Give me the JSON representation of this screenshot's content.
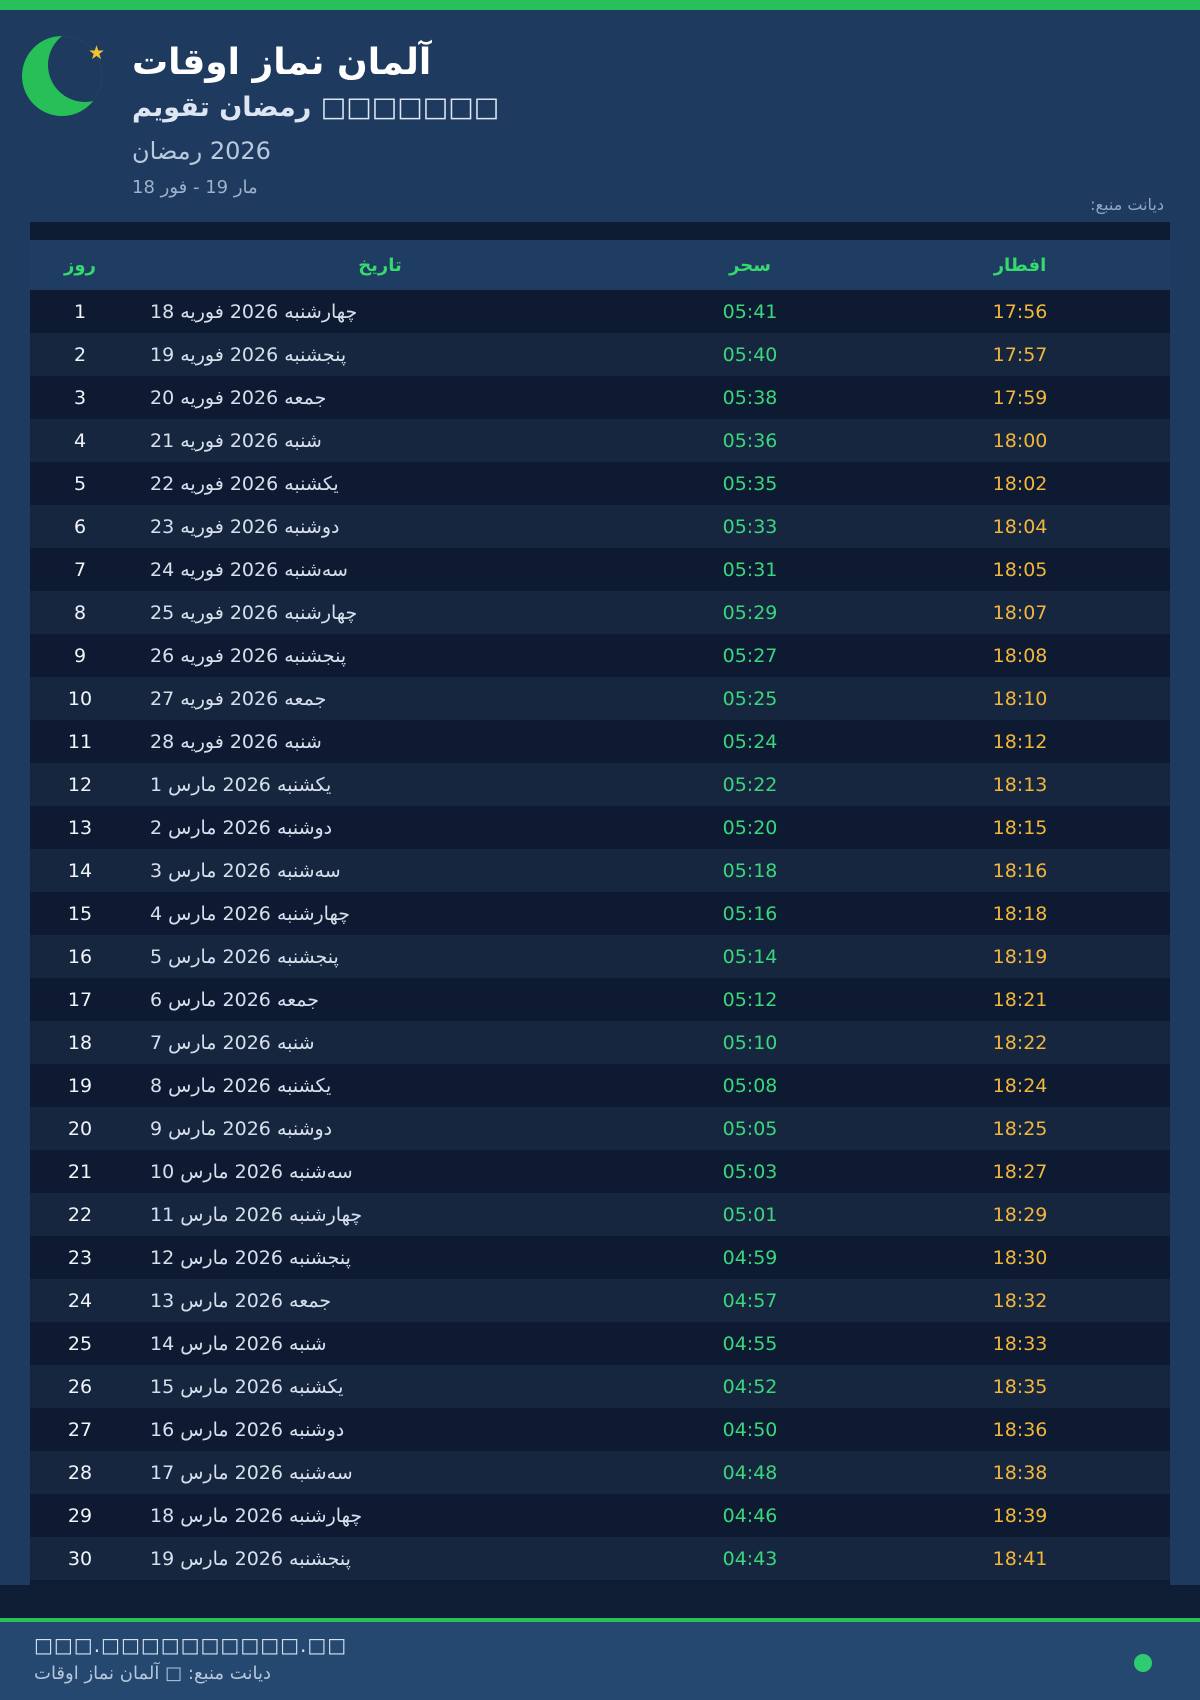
{
  "colors": {
    "accent_green": "#27c05a",
    "suhoor_time_green": "#3ad67c",
    "iftar_time_amber": "#f2b63c",
    "header_navy": "#1e3a5e",
    "card_dark": "#0e1c33",
    "footer_blue": "#244870",
    "star_gold": "#f4c430"
  },
  "header": {
    "title": "اوقات نماز آلمان",
    "subtitle": "تقویم رمضان □□□□□□□",
    "season": "رمضان 2026",
    "date_range": "18 فور - 19 مار",
    "source": "منبع: دیانت"
  },
  "table": {
    "columns": [
      {
        "key": "day",
        "label": "روز"
      },
      {
        "key": "date",
        "label": "تاریخ"
      },
      {
        "key": "suhoor",
        "label": "سحر"
      },
      {
        "key": "iftar",
        "label": "افطار"
      }
    ],
    "rows": [
      {
        "day": "1",
        "date": "18 فوریه 2026 چهارشنبه",
        "suhoor": "05:41",
        "iftar": "17:56"
      },
      {
        "day": "2",
        "date": "19 فوریه 2026 پنجشنبه",
        "suhoor": "05:40",
        "iftar": "17:57"
      },
      {
        "day": "3",
        "date": "20 فوریه 2026 جمعه",
        "suhoor": "05:38",
        "iftar": "17:59"
      },
      {
        "day": "4",
        "date": "21 فوریه 2026 شنبه",
        "suhoor": "05:36",
        "iftar": "18:00"
      },
      {
        "day": "5",
        "date": "22 فوریه 2026 یکشنبه",
        "suhoor": "05:35",
        "iftar": "18:02"
      },
      {
        "day": "6",
        "date": "23 فوریه 2026 دوشنبه",
        "suhoor": "05:33",
        "iftar": "18:04"
      },
      {
        "day": "7",
        "date": "24 فوریه 2026 سه‌شنبه",
        "suhoor": "05:31",
        "iftar": "18:05"
      },
      {
        "day": "8",
        "date": "25 فوریه 2026 چهارشنبه",
        "suhoor": "05:29",
        "iftar": "18:07"
      },
      {
        "day": "9",
        "date": "26 فوریه 2026 پنجشنبه",
        "suhoor": "05:27",
        "iftar": "18:08"
      },
      {
        "day": "10",
        "date": "27 فوریه 2026 جمعه",
        "suhoor": "05:25",
        "iftar": "18:10"
      },
      {
        "day": "11",
        "date": "28 فوریه 2026 شنبه",
        "suhoor": "05:24",
        "iftar": "18:12"
      },
      {
        "day": "12",
        "date": "1 مارس 2026 یکشنبه",
        "suhoor": "05:22",
        "iftar": "18:13"
      },
      {
        "day": "13",
        "date": "2 مارس 2026 دوشنبه",
        "suhoor": "05:20",
        "iftar": "18:15"
      },
      {
        "day": "14",
        "date": "3 مارس 2026 سه‌شنبه",
        "suhoor": "05:18",
        "iftar": "18:16"
      },
      {
        "day": "15",
        "date": "4 مارس 2026 چهارشنبه",
        "suhoor": "05:16",
        "iftar": "18:18"
      },
      {
        "day": "16",
        "date": "5 مارس 2026 پنجشنبه",
        "suhoor": "05:14",
        "iftar": "18:19"
      },
      {
        "day": "17",
        "date": "6 مارس 2026 جمعه",
        "suhoor": "05:12",
        "iftar": "18:21"
      },
      {
        "day": "18",
        "date": "7 مارس 2026 شنبه",
        "suhoor": "05:10",
        "iftar": "18:22"
      },
      {
        "day": "19",
        "date": "8 مارس 2026 یکشنبه",
        "suhoor": "05:08",
        "iftar": "18:24"
      },
      {
        "day": "20",
        "date": "9 مارس 2026 دوشنبه",
        "suhoor": "05:05",
        "iftar": "18:25"
      },
      {
        "day": "21",
        "date": "10 مارس 2026 سه‌شنبه",
        "suhoor": "05:03",
        "iftar": "18:27"
      },
      {
        "day": "22",
        "date": "11 مارس 2026 چهارشنبه",
        "suhoor": "05:01",
        "iftar": "18:29"
      },
      {
        "day": "23",
        "date": "12 مارس 2026 پنجشنبه",
        "suhoor": "04:59",
        "iftar": "18:30"
      },
      {
        "day": "24",
        "date": "13 مارس 2026 جمعه",
        "suhoor": "04:57",
        "iftar": "18:32"
      },
      {
        "day": "25",
        "date": "14 مارس 2026 شنبه",
        "suhoor": "04:55",
        "iftar": "18:33"
      },
      {
        "day": "26",
        "date": "15 مارس 2026 یکشنبه",
        "suhoor": "04:52",
        "iftar": "18:35"
      },
      {
        "day": "27",
        "date": "16 مارس 2026 دوشنبه",
        "suhoor": "04:50",
        "iftar": "18:36"
      },
      {
        "day": "28",
        "date": "17 مارس 2026 سه‌شنبه",
        "suhoor": "04:48",
        "iftar": "18:38"
      },
      {
        "day": "29",
        "date": "18 مارس 2026 چهارشنبه",
        "suhoor": "04:46",
        "iftar": "18:39"
      },
      {
        "day": "30",
        "date": "19 مارس 2026 پنجشنبه",
        "suhoor": "04:43",
        "iftar": "18:41"
      }
    ]
  },
  "footer": {
    "line1": "□□□.□□□□□□□□□□.□□",
    "line2": "اوقات نماز آلمان □ منبع: دیانت"
  }
}
